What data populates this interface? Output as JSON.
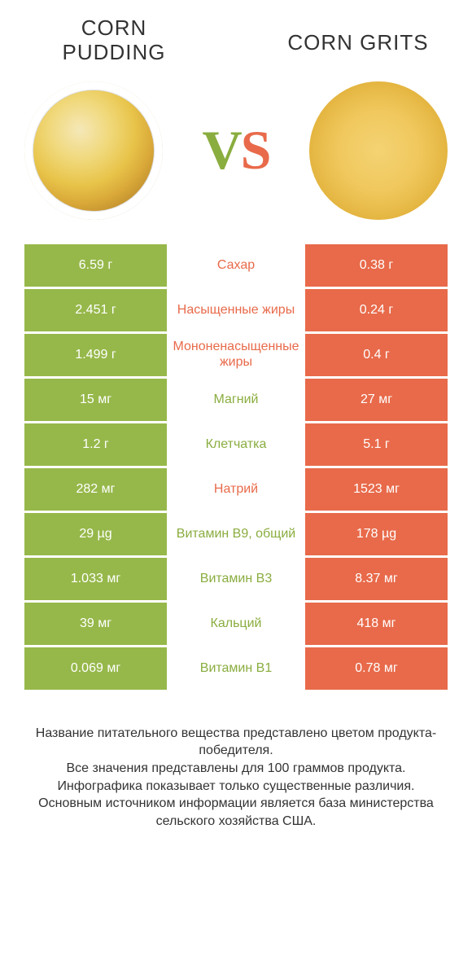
{
  "colors": {
    "green": "#96b84a",
    "orange": "#e86a4a",
    "green_text": "#8aad3f",
    "orange_text": "#e86a4a",
    "white": "#ffffff",
    "body_text": "#333333"
  },
  "typography": {
    "title_fontsize": 26,
    "cell_fontsize": 16,
    "vs_fontsize": 68,
    "footer_fontsize": 16
  },
  "header": {
    "left_title": "CORN PUDDING",
    "right_title": "CORN GRITS",
    "vs_v": "V",
    "vs_s": "S"
  },
  "rows": [
    {
      "left": "6.59 г",
      "label": "Сахар",
      "right": "0.38 г",
      "winner": "left"
    },
    {
      "left": "2.451 г",
      "label": "Насыщенные жиры",
      "right": "0.24 г",
      "winner": "left"
    },
    {
      "left": "1.499 г",
      "label": "Мононенасыщенные жиры",
      "right": "0.4 г",
      "winner": "left"
    },
    {
      "left": "15 мг",
      "label": "Магний",
      "right": "27 мг",
      "winner": "right"
    },
    {
      "left": "1.2 г",
      "label": "Клетчатка",
      "right": "5.1 г",
      "winner": "right"
    },
    {
      "left": "282 мг",
      "label": "Натрий",
      "right": "1523 мг",
      "winner": "left"
    },
    {
      "left": "29 µg",
      "label": "Витамин B9, общий",
      "right": "178 µg",
      "winner": "right"
    },
    {
      "left": "1.033 мг",
      "label": "Витамин B3",
      "right": "8.37 мг",
      "winner": "right"
    },
    {
      "left": "39 мг",
      "label": "Кальций",
      "right": "418 мг",
      "winner": "right"
    },
    {
      "left": "0.069 мг",
      "label": "Витамин B1",
      "right": "0.78 мг",
      "winner": "right"
    }
  ],
  "footer": {
    "line1": "Название питательного вещества представлено цветом продукта-победителя.",
    "line2": "Все значения представлены для 100 граммов продукта.",
    "line3": "Инфографика показывает только существенные различия.",
    "line4": "Основным источником информации является база министерства сельского хозяйства США."
  }
}
